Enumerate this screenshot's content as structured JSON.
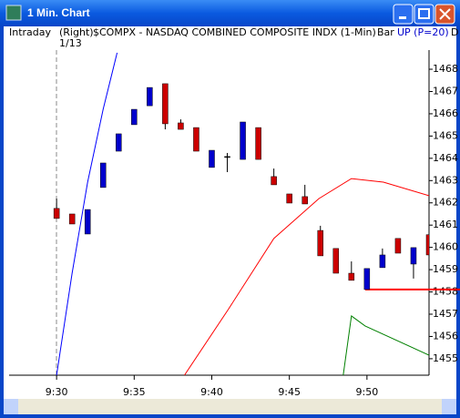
{
  "window": {
    "title": "1 Min. Chart"
  },
  "header": {
    "mode": "Intraday",
    "side": "(Right)",
    "symbol": "$COMPX - NASDAQ COMBINED COMPOSITE INDX (1-Min)",
    "date": "1/13",
    "style": "Bar",
    "indicator": "UP (P=20)",
    "cut": "D"
  },
  "chart_data": {
    "type": "candlestick",
    "x": [
      0,
      1,
      2,
      3,
      4,
      5,
      6,
      7,
      8,
      9,
      10,
      11,
      12,
      13,
      14,
      15,
      16,
      17,
      18,
      19,
      20,
      21,
      22,
      23,
      24
    ],
    "open": [
      1461.75,
      1461.5,
      1460.6,
      1462.69,
      1464.32,
      1465.51,
      1466.36,
      1467.35,
      1465.59,
      1465.38,
      1463.59,
      1464.08,
      1463.95,
      1465.38,
      1463.18,
      1462.4,
      1462.28,
      1460.76,
      1459.95,
      1458.84,
      1458.11,
      1459.09,
      1460.4,
      1459.25,
      1460.57
    ],
    "high": [
      1462.19,
      1461.5,
      1461.7,
      1463.79,
      1465.1,
      1466.2,
      1467.18,
      1467.35,
      1465.75,
      1465.38,
      1464.36,
      1464.24,
      1465.63,
      1465.38,
      1463.54,
      1462.4,
      1462.81,
      1460.97,
      1459.95,
      1459.37,
      1459.05,
      1459.95,
      1460.4,
      1459.99,
      1460.57
    ],
    "low": [
      1461.3,
      1461.05,
      1460.6,
      1462.69,
      1464.32,
      1465.51,
      1466.36,
      1465.3,
      1465.3,
      1464.32,
      1463.59,
      1463.38,
      1463.95,
      1463.95,
      1462.81,
      1461.99,
      1461.95,
      1459.62,
      1458.84,
      1458.52,
      1458.11,
      1459.09,
      1459.74,
      1458.6,
      1459.66
    ],
    "close": [
      1461.3,
      1461.05,
      1461.7,
      1463.79,
      1465.1,
      1466.2,
      1467.18,
      1465.55,
      1465.3,
      1464.32,
      1464.36,
      1464.08,
      1465.63,
      1463.95,
      1462.81,
      1461.99,
      1461.95,
      1459.62,
      1458.84,
      1458.52,
      1459.05,
      1459.66,
      1459.74,
      1459.99,
      1459.66
    ],
    "up_color": "#0000cc",
    "down_color": "#cc0000",
    "flat_color": "#000000",
    "overlays": [
      {
        "color": "#0000ff",
        "x": [
          0,
          1,
          2,
          3,
          3.9
        ],
        "values": [
          1454.26,
          1458.84,
          1462.93,
          1466.2,
          1468.74
        ]
      },
      {
        "color": "#ff0000",
        "x": [
          8.24,
          11.06,
          14,
          16.9,
          19,
          21.06,
          24
        ],
        "values": [
          1454.26,
          1457.21,
          1460.4,
          1462.19,
          1463.09,
          1462.93,
          1462.32
        ]
      },
      {
        "color": "#008000",
        "x": [
          18.47,
          19,
          19.88,
          24
        ],
        "values": [
          1454.26,
          1456.92,
          1456.47,
          1455.16
        ]
      }
    ],
    "last_price": {
      "x": 19.88,
      "value": 1458.11,
      "color": "#ff0000"
    },
    "xlim": [
      -3.06,
      24
    ],
    "xticks": [
      {
        "value": 0,
        "label": "9:30"
      },
      {
        "value": 5,
        "label": "9:35"
      },
      {
        "value": 10,
        "label": "9:40"
      },
      {
        "value": 15,
        "label": "9:45"
      },
      {
        "value": 20,
        "label": "9:50"
      }
    ],
    "ylim": [
      1454.26,
      1468.86
    ],
    "yticks": [
      1455,
      1456,
      1457,
      1458,
      1459,
      1460,
      1461,
      1462,
      1463,
      1464,
      1465,
      1466,
      1467,
      1468
    ]
  }
}
